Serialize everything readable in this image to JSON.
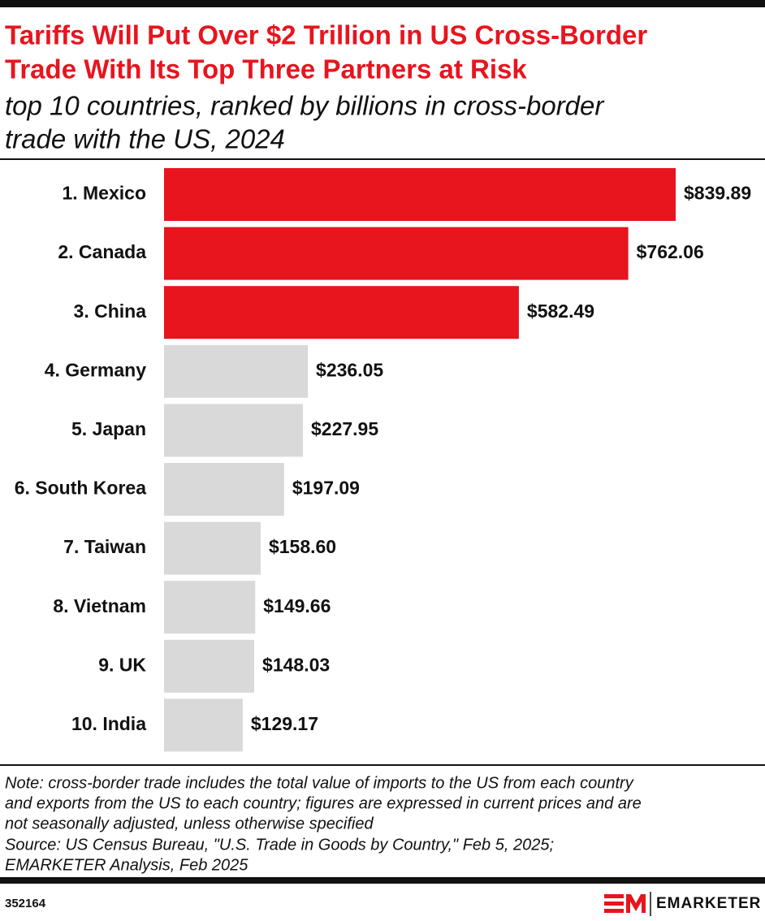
{
  "chart_data": {
    "type": "bar",
    "orientation": "horizontal",
    "title": [
      "Tariffs Will Put Over $2 Trillion in US Cross-Border",
      "Trade With Its Top Three Partners at Risk"
    ],
    "subtitle": [
      "top 10 countries, ranked by billions in cross-border",
      "trade with the US, 2024"
    ],
    "categories": [
      "1. Mexico",
      "2. Canada",
      "3. China",
      "4. Germany",
      "5. Japan",
      "6. South Korea",
      "7. Taiwan",
      "8. Vietnam",
      "9. UK",
      "10. India"
    ],
    "values": [
      839.89,
      762.06,
      582.49,
      236.05,
      227.95,
      197.09,
      158.6,
      149.66,
      148.03,
      129.17
    ],
    "value_labels": [
      "$839.89",
      "$762.06",
      "$582.49",
      "$236.05",
      "$227.95",
      "$197.09",
      "$158.60",
      "$149.66",
      "$148.03",
      "$129.17"
    ],
    "colors": [
      "#e8141e",
      "#e8141e",
      "#e8141e",
      "#d9d9d9",
      "#d9d9d9",
      "#d9d9d9",
      "#d9d9d9",
      "#d9d9d9",
      "#d9d9d9",
      "#d9d9d9"
    ],
    "footnotes": [
      "Note: cross-border trade includes the total value of imports to the US from each country",
      "and exports from the US to each country; figures are expressed in current prices and are",
      "not seasonally adjusted, unless otherwise specified",
      "Source: US Census Bureau, \"U.S. Trade in Goods by Country,\" Feb 5, 2025;",
      "EMARKETER Analysis, Feb 2025"
    ],
    "chart_id": "352164",
    "brand": "EMARKETER"
  }
}
